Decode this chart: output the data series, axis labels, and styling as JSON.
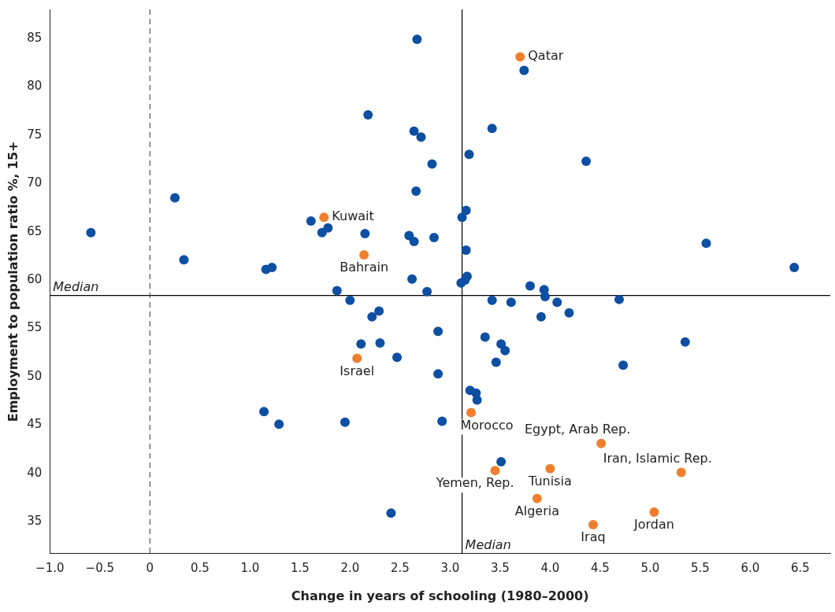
{
  "chart_data": {
    "type": "scatter",
    "xlabel": "Change in years of schooling (1980–2000)",
    "ylabel": "Employment to population ratio %, 15+",
    "xlim": [
      -1.0,
      6.8
    ],
    "ylim": [
      31.7,
      88
    ],
    "xticks": [
      {
        "value": -1,
        "label": "−1.0"
      },
      {
        "value": -0.5,
        "label": "−0.5"
      },
      0,
      {
        "value": 0.5,
        "label": "0.5"
      },
      {
        "value": 1,
        "label": "1.0"
      },
      {
        "value": 1.5,
        "label": "1.5"
      },
      {
        "value": 2,
        "label": "2.0"
      },
      {
        "value": 2.5,
        "label": "2.5"
      },
      {
        "value": 3,
        "label": "3.0"
      },
      {
        "value": 3.5,
        "label": "3.5"
      },
      {
        "value": 4,
        "label": "4.0"
      },
      {
        "value": 4.5,
        "label": "4.5"
      },
      {
        "value": 5,
        "label": "5.0"
      },
      {
        "value": 5.5,
        "label": "5.5"
      },
      {
        "value": 6,
        "label": "6.0"
      },
      {
        "value": 6.5,
        "label": "6.5"
      }
    ],
    "yticks": [
      35,
      40,
      45,
      50,
      55,
      60,
      65,
      70,
      75,
      80,
      85
    ],
    "grid": false,
    "legend": false,
    "marker": "circle",
    "ref_lines": [
      {
        "axis": "y",
        "value": 58.4,
        "label": "Median",
        "color": "#000000"
      },
      {
        "axis": "x",
        "value": 3.12,
        "label": "Median",
        "color": "#000000"
      },
      {
        "axis": "x",
        "value": 0,
        "color": "#555555",
        "line_style": "dashed"
      }
    ],
    "series": [
      {
        "color": "#0d4fa3",
        "x": [
          -0.59,
          0.25,
          0.34,
          1.16,
          1.22,
          1.14,
          1.29,
          1.61,
          1.72,
          1.78,
          1.87,
          2.0,
          1.95,
          2.11,
          2.15,
          2.18,
          2.22,
          2.29,
          2.3,
          2.47,
          2.41,
          2.67,
          2.59,
          2.64,
          2.71,
          2.64,
          2.66,
          2.62,
          2.82,
          2.84,
          2.77,
          2.88,
          2.88,
          2.92,
          3.12,
          3.16,
          3.19,
          3.16,
          3.11,
          3.15,
          3.17,
          3.42,
          3.42,
          3.35,
          3.51,
          3.55,
          3.46,
          3.2,
          3.26,
          3.27,
          3.51,
          3.61,
          3.74,
          3.8,
          3.94,
          3.95,
          3.91,
          4.07,
          4.19,
          4.36,
          4.69,
          4.73,
          5.35,
          5.56,
          6.44
        ],
        "values": [
          64.9,
          68.5,
          62.1,
          61.1,
          61.3,
          46.4,
          45.1,
          66.1,
          64.9,
          65.4,
          58.9,
          57.9,
          45.3,
          53.4,
          64.8,
          77.1,
          56.2,
          56.8,
          53.5,
          52.0,
          35.9,
          84.9,
          64.6,
          75.4,
          74.8,
          64.0,
          69.2,
          60.1,
          72.0,
          64.4,
          58.8,
          54.7,
          50.3,
          45.4,
          66.5,
          67.2,
          73.0,
          63.1,
          59.7,
          60.0,
          60.4,
          75.7,
          57.9,
          54.1,
          53.4,
          52.7,
          51.5,
          48.6,
          48.3,
          47.6,
          41.2,
          57.7,
          81.7,
          59.4,
          59.0,
          58.3,
          56.2,
          57.7,
          56.6,
          72.3,
          58.0,
          51.2,
          53.6,
          63.8,
          61.3
        ]
      },
      {
        "color": "#f07f2d",
        "x": [
          3.7,
          1.74,
          2.14,
          2.07,
          3.21,
          4.51,
          3.45,
          4.0,
          5.31,
          3.87,
          5.04,
          4.43
        ],
        "values": [
          83.1,
          66.5,
          62.6,
          51.9,
          46.3,
          43.1,
          40.3,
          40.5,
          40.1,
          37.4,
          36.0,
          34.7
        ],
        "value_labels": [
          "Qatar",
          "Kuwait",
          "Bahrain",
          "Israel",
          "Morocco",
          "Egypt, Arab Rep.",
          "Yemen, Rep.",
          "Tunisia",
          "Iran, Islamic Rep.",
          "Algeria",
          "Jordan",
          "Iraq"
        ]
      }
    ]
  }
}
